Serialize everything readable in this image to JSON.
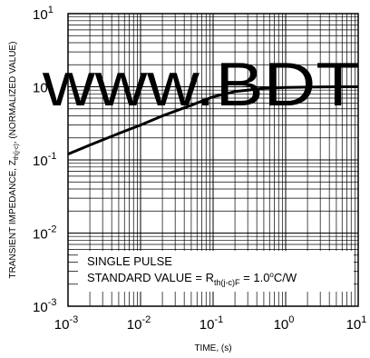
{
  "chart_data": {
    "type": "line",
    "xlabel": "TIME, (s)",
    "ylabel_parts": {
      "pre": "TRANSIENT  IMPEDANCE, Z",
      "sub": "th(j-c)",
      "post": ",  (NORMALIZED VALUE)"
    },
    "x_scale": "log",
    "y_scale": "log",
    "xlim": [
      0.001,
      10
    ],
    "ylim": [
      0.001,
      10
    ],
    "x_ticks": [
      {
        "base": "10",
        "exp": "-3"
      },
      {
        "base": "10",
        "exp": "-2"
      },
      {
        "base": "10",
        "exp": "-1"
      },
      {
        "base": "10",
        "exp": "0"
      },
      {
        "base": "10",
        "exp": "1"
      }
    ],
    "y_ticks": [
      {
        "base": "10",
        "exp": "-3"
      },
      {
        "base": "10",
        "exp": "-2"
      },
      {
        "base": "10",
        "exp": "-1"
      },
      {
        "base": "10",
        "exp": ""
      },
      {
        "base": "10",
        "exp": "1"
      }
    ],
    "grid": true,
    "series": [
      {
        "x": [
          0.001,
          0.002,
          0.005,
          0.01,
          0.02,
          0.05,
          0.1,
          0.2,
          0.5,
          1,
          2,
          5,
          10
        ],
        "y": [
          0.12,
          0.16,
          0.23,
          0.3,
          0.4,
          0.56,
          0.73,
          0.86,
          0.95,
          0.98,
          0.99,
          1.0,
          1.0
        ]
      }
    ],
    "annotation": {
      "line1": "SINGLE PULSE",
      "line2_pre": "STANDARD VALUE = R",
      "line2_sub": "th(j-c)F",
      "line2_mid": " = 1.0",
      "line2_sup": "o",
      "line2_post": "C/W"
    },
    "watermark": "www.BDT",
    "watermark_color": "#1a1aee",
    "curve_color": "#000000"
  }
}
